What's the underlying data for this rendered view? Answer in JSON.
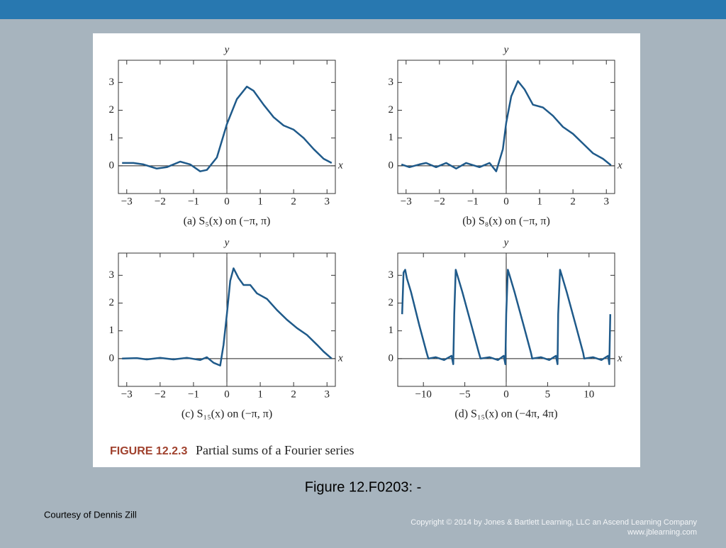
{
  "slide": {
    "title": "Figure 12.F0203: -",
    "courtesy": "Courtesy of Dennis Zill",
    "copyright": [
      "Copyright © 2014 by Jones & Bartlett Learning, LLC an Ascend Learning Company",
      "www.jblearning.com"
    ]
  },
  "figure": {
    "label": "FIGURE 12.2.3",
    "caption": "Partial sums of a Fourier series"
  },
  "chart_data": [
    {
      "type": "line",
      "caption": "(a) S₅(x) on (−π, π)",
      "xlabel": "x",
      "ylabel": "y",
      "color": "#1f5a8a",
      "x": [
        -3.14,
        -2.8,
        -2.5,
        -2.1,
        -1.8,
        -1.4,
        -1.1,
        -0.8,
        -0.6,
        -0.3,
        0,
        0.3,
        0.6,
        0.8,
        1.1,
        1.4,
        1.7,
        2.0,
        2.3,
        2.6,
        2.9,
        3.14
      ],
      "values": [
        0.1,
        0.1,
        0.05,
        -0.1,
        -0.05,
        0.15,
        0.05,
        -0.2,
        -0.15,
        0.3,
        1.5,
        2.4,
        2.85,
        2.7,
        2.2,
        1.75,
        1.45,
        1.3,
        1.0,
        0.6,
        0.25,
        0.1
      ],
      "xlim": [
        -3.25,
        3.25
      ],
      "ylim": [
        -1,
        3.8
      ],
      "xticks": [
        {
          "value": -3,
          "label": "−3"
        },
        {
          "value": -2,
          "label": "−2"
        },
        {
          "value": -1,
          "label": "−1"
        },
        0,
        1,
        2,
        3
      ],
      "yticks": [
        0,
        1,
        2,
        3
      ]
    },
    {
      "type": "line",
      "caption": "(b) S₈(x) on (−π, π)",
      "xlabel": "x",
      "ylabel": "y",
      "color": "#1f5a8a",
      "x": [
        -3.14,
        -2.9,
        -2.6,
        -2.4,
        -2.1,
        -1.8,
        -1.5,
        -1.2,
        -0.8,
        -0.5,
        -0.3,
        -0.1,
        0,
        0.15,
        0.35,
        0.55,
        0.8,
        1.1,
        1.4,
        1.7,
        2.0,
        2.3,
        2.6,
        2.9,
        3.14
      ],
      "values": [
        0.05,
        -0.05,
        0.05,
        0.1,
        -0.05,
        0.1,
        -0.1,
        0.1,
        -0.05,
        0.1,
        -0.2,
        0.6,
        1.55,
        2.5,
        3.05,
        2.75,
        2.2,
        2.1,
        1.8,
        1.4,
        1.15,
        0.8,
        0.45,
        0.25,
        0.02
      ],
      "xlim": [
        -3.25,
        3.25
      ],
      "ylim": [
        -1,
        3.8
      ],
      "xticks": [
        {
          "value": -3,
          "label": "−3"
        },
        {
          "value": -2,
          "label": "−2"
        },
        {
          "value": -1,
          "label": "−1"
        },
        0,
        1,
        2,
        3
      ],
      "yticks": [
        0,
        1,
        2,
        3
      ]
    },
    {
      "type": "line",
      "caption": "(c) S₁₅(x) on (−π, π)",
      "xlabel": "x",
      "ylabel": "y",
      "color": "#1f5a8a",
      "x": [
        -3.14,
        -2.7,
        -2.4,
        -2.0,
        -1.6,
        -1.2,
        -0.8,
        -0.6,
        -0.4,
        -0.2,
        -0.1,
        0,
        0.1,
        0.2,
        0.35,
        0.5,
        0.7,
        0.9,
        1.2,
        1.5,
        1.8,
        2.1,
        2.4,
        2.7,
        2.9,
        3.14
      ],
      "values": [
        0,
        0.02,
        -0.03,
        0.03,
        -0.03,
        0.03,
        -0.05,
        0.05,
        -0.15,
        -0.25,
        0.5,
        1.6,
        2.8,
        3.25,
        2.9,
        2.65,
        2.65,
        2.35,
        2.15,
        1.75,
        1.4,
        1.1,
        0.85,
        0.5,
        0.25,
        0
      ],
      "xlim": [
        -3.25,
        3.25
      ],
      "ylim": [
        -1,
        3.8
      ],
      "xticks": [
        {
          "value": -3,
          "label": "−3"
        },
        {
          "value": -2,
          "label": "−2"
        },
        {
          "value": -1,
          "label": "−1"
        },
        0,
        1,
        2,
        3
      ],
      "yticks": [
        0,
        1,
        2,
        3
      ]
    },
    {
      "type": "line",
      "caption": "(d) S₁₅(x) on (−4π, 4π)",
      "xlabel": "x",
      "ylabel": "y",
      "color": "#1f5a8a",
      "x": [
        -12.57,
        -12.4,
        -12.2,
        -12.0,
        -11.5,
        -10.5,
        -9.6,
        -9.4,
        -8.5,
        -7.5,
        -6.6,
        -6.4,
        -6.28,
        -6.1,
        -5.9,
        -5.3,
        -4.2,
        -3.3,
        -3.1,
        -2,
        -1,
        -0.3,
        -0.1,
        0,
        0.2,
        0.4,
        1.0,
        2.1,
        3.0,
        3.14,
        4.2,
        5.2,
        6.0,
        6.2,
        6.28,
        6.5,
        6.7,
        7.3,
        8.4,
        9.3,
        9.42,
        10.5,
        11.5,
        12.3,
        12.45,
        12.57
      ],
      "values": [
        1.6,
        3.1,
        3.2,
        2.9,
        2.4,
        1.2,
        0.2,
        0,
        0.05,
        -0.05,
        0.1,
        -0.2,
        1.6,
        3.2,
        3.0,
        2.4,
        1.2,
        0.2,
        0,
        0.05,
        -0.05,
        0.1,
        -0.2,
        1.6,
        3.2,
        3.0,
        2.4,
        1.2,
        0.2,
        0,
        0.05,
        -0.05,
        0.1,
        -0.2,
        1.6,
        3.2,
        3.0,
        2.4,
        1.2,
        0.2,
        0,
        0.05,
        -0.05,
        0.1,
        -0.2,
        1.6
      ],
      "xlim": [
        -13.1,
        13.1
      ],
      "ylim": [
        -1,
        3.8
      ],
      "xticks": [
        {
          "value": -10,
          "label": "−10"
        },
        {
          "value": -5,
          "label": "−5"
        },
        0,
        5,
        10
      ],
      "yticks": [
        0,
        1,
        2,
        3
      ]
    }
  ]
}
